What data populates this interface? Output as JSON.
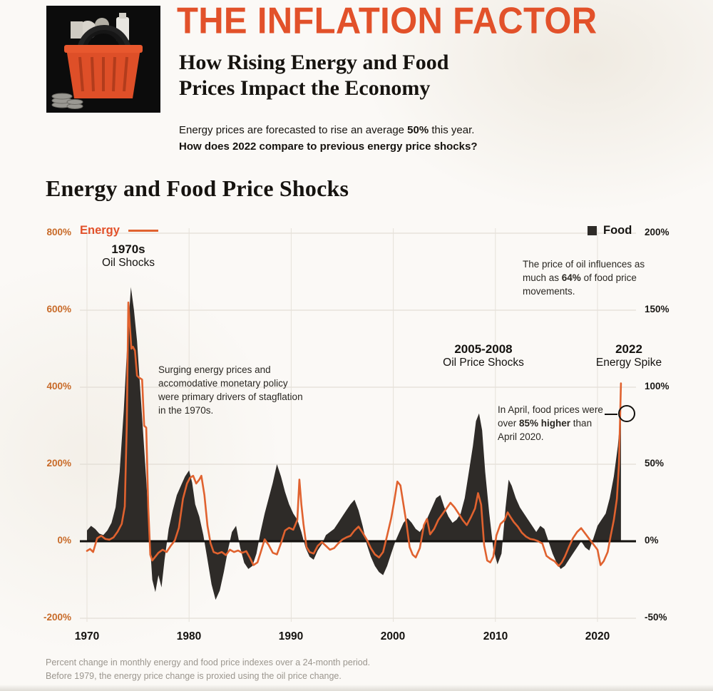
{
  "page": {
    "accent": "#e2512a",
    "background": "#fbf9f6",
    "food_color": "#2e2b28",
    "energy_color": "#e0622f"
  },
  "header": {
    "title": "THE INFLATION FACTOR",
    "subtitle_line1": "How Rising Energy and Food",
    "subtitle_line2": "Prices Impact the Economy",
    "intro_pre": "Energy prices are forecasted to rise an average ",
    "intro_bold": "50%",
    "intro_post": " this year.",
    "intro_question": "How does 2022 compare to previous energy price shocks?"
  },
  "section": {
    "title": "Energy and Food Price Shocks"
  },
  "legend": {
    "energy": "Energy",
    "food": "Food"
  },
  "axes": {
    "left_ticks": [
      "800%",
      "600%",
      "400%",
      "200%",
      "0%",
      "-200%"
    ],
    "right_ticks": [
      "200%",
      "150%",
      "100%",
      "50%",
      "0%",
      "-50%"
    ],
    "x_ticks": [
      "1970",
      "1980",
      "1990",
      "2000",
      "2010",
      "2020"
    ]
  },
  "annotations": {
    "a1970_title": "1970s",
    "a1970_sub": "Oil Shocks",
    "stagflation": "Surging energy prices and accomodative monetary policy were primary drivers of stagflation in the 1970s.",
    "a2005_title": "2005-2008",
    "a2005_sub": "Oil Price Shocks",
    "a2022_title": "2022",
    "a2022_sub": "Energy Spike",
    "oil_pre": "The price of oil influences as much as ",
    "oil_bold": "64%",
    "oil_post": " of food price movements.",
    "april_pre": "In April, food prices were over ",
    "april_bold": "85% higher",
    "april_post": " than April 2020."
  },
  "footnote": {
    "line1": "Percent change in monthly energy and food price indexes over a 24-month period.",
    "line2": "Before 1979, the energy price change is proxied using the oil price change."
  },
  "chart_data": {
    "type": "line+area",
    "title": "Energy and Food Price Shocks",
    "x_range": [
      1969.5,
      2023.2
    ],
    "x_gridlines": [
      1970,
      1980,
      1990,
      2000,
      2010,
      2020
    ],
    "grid": true,
    "legend_position": "top",
    "left_axis": {
      "label": "Energy (% change, 24-month)",
      "range": [
        -200,
        800
      ],
      "ticks": [
        800,
        600,
        400,
        200,
        0,
        -200
      ],
      "color": "#e0622f"
    },
    "right_axis": {
      "label": "Food (% change, 24-month)",
      "range": [
        -50,
        200
      ],
      "ticks": [
        200,
        150,
        100,
        50,
        0,
        -50
      ],
      "color": "#2e2b28"
    },
    "series": [
      {
        "name": "Energy",
        "axis": "left",
        "type": "line",
        "color": "#e0622f",
        "x": [
          1970.0,
          1970.3,
          1970.6,
          1971.0,
          1971.4,
          1971.8,
          1972.2,
          1972.6,
          1973.0,
          1973.4,
          1973.7,
          1973.9,
          1974.05,
          1974.2,
          1974.35,
          1974.5,
          1974.7,
          1974.9,
          1975.1,
          1975.4,
          1975.6,
          1975.8,
          1976.0,
          1976.2,
          1976.4,
          1976.7,
          1977.0,
          1977.4,
          1977.8,
          1978.2,
          1978.6,
          1979.0,
          1979.4,
          1979.8,
          1980.1,
          1980.4,
          1980.7,
          1981.0,
          1981.2,
          1981.5,
          1981.8,
          1982.1,
          1982.4,
          1982.8,
          1983.2,
          1983.6,
          1984.0,
          1984.4,
          1984.8,
          1985.2,
          1985.6,
          1986.0,
          1986.3,
          1986.7,
          1987.0,
          1987.4,
          1987.8,
          1988.2,
          1988.6,
          1989.0,
          1989.4,
          1989.8,
          1990.2,
          1990.6,
          1990.8,
          1991.0,
          1991.2,
          1991.5,
          1991.8,
          1992.2,
          1992.6,
          1993.0,
          1993.4,
          1993.8,
          1994.2,
          1994.6,
          1995.0,
          1995.4,
          1995.8,
          1996.2,
          1996.6,
          1997.0,
          1997.4,
          1997.8,
          1998.2,
          1998.6,
          1999.0,
          1999.4,
          1999.8,
          2000.1,
          2000.4,
          2000.7,
          2001.0,
          2001.3,
          2001.6,
          2001.9,
          2002.2,
          2002.6,
          2003.0,
          2003.3,
          2003.6,
          2004.0,
          2004.4,
          2004.8,
          2005.2,
          2005.6,
          2006.0,
          2006.4,
          2006.8,
          2007.2,
          2007.6,
          2008.0,
          2008.3,
          2008.6,
          2008.9,
          2009.2,
          2009.5,
          2009.8,
          2010.1,
          2010.5,
          2010.9,
          2011.2,
          2011.5,
          2011.8,
          2012.2,
          2012.6,
          2013.0,
          2013.4,
          2013.8,
          2014.2,
          2014.6,
          2015.0,
          2015.4,
          2015.8,
          2016.2,
          2016.5,
          2016.8,
          2017.2,
          2017.6,
          2018.0,
          2018.4,
          2018.8,
          2019.2,
          2019.6,
          2020.0,
          2020.3,
          2020.6,
          2021.0,
          2021.3,
          2021.6,
          2021.9,
          2022.1,
          2022.3
        ],
        "values": [
          -25,
          -20,
          -28,
          8,
          14,
          6,
          4,
          10,
          25,
          45,
          90,
          300,
          620,
          560,
          500,
          505,
          495,
          430,
          425,
          420,
          300,
          295,
          90,
          -35,
          -50,
          -40,
          -30,
          -22,
          -28,
          -12,
          2,
          35,
          110,
          150,
          165,
          170,
          150,
          160,
          170,
          120,
          40,
          -5,
          -28,
          -32,
          -28,
          -36,
          -22,
          -28,
          -24,
          -30,
          -26,
          -45,
          -62,
          -55,
          -30,
          5,
          -10,
          -30,
          -34,
          -5,
          28,
          35,
          30,
          55,
          160,
          95,
          45,
          -15,
          -28,
          -32,
          -12,
          -2,
          -12,
          -22,
          -18,
          -6,
          4,
          10,
          14,
          28,
          38,
          22,
          4,
          -18,
          -34,
          -42,
          -28,
          15,
          60,
          105,
          155,
          145,
          95,
          45,
          -15,
          -35,
          -42,
          -18,
          42,
          58,
          18,
          32,
          55,
          70,
          85,
          100,
          88,
          72,
          55,
          42,
          62,
          85,
          125,
          95,
          -10,
          -50,
          -55,
          -40,
          15,
          45,
          55,
          75,
          62,
          50,
          38,
          22,
          12,
          6,
          4,
          0,
          -6,
          -38,
          -46,
          -52,
          -64,
          -55,
          -40,
          -15,
          8,
          24,
          34,
          20,
          6,
          -8,
          -22,
          -62,
          -52,
          -28,
          15,
          55,
          110,
          200,
          410
        ]
      },
      {
        "name": "Food",
        "axis": "right",
        "type": "area",
        "color": "#2e2b28",
        "x": [
          1970.0,
          1970.4,
          1970.8,
          1971.2,
          1971.6,
          1972.0,
          1972.4,
          1972.8,
          1973.2,
          1973.6,
          1974.0,
          1974.3,
          1974.6,
          1974.9,
          1975.2,
          1975.5,
          1975.8,
          1976.1,
          1976.4,
          1976.7,
          1977.0,
          1977.3,
          1977.6,
          1978.0,
          1978.4,
          1978.8,
          1979.2,
          1979.6,
          1980.0,
          1980.3,
          1980.6,
          1981.0,
          1981.4,
          1981.8,
          1982.2,
          1982.6,
          1983.0,
          1983.4,
          1983.8,
          1984.2,
          1984.6,
          1985.0,
          1985.4,
          1985.8,
          1986.2,
          1986.6,
          1987.0,
          1987.4,
          1987.8,
          1988.2,
          1988.6,
          1989.0,
          1989.4,
          1989.8,
          1990.2,
          1990.6,
          1991.0,
          1991.4,
          1991.8,
          1992.2,
          1992.6,
          1993.0,
          1993.4,
          1993.8,
          1994.2,
          1994.6,
          1995.0,
          1995.4,
          1995.8,
          1996.2,
          1996.6,
          1997.0,
          1997.4,
          1997.8,
          1998.2,
          1998.6,
          1999.0,
          1999.4,
          1999.8,
          2000.2,
          2000.6,
          2001.0,
          2001.4,
          2001.8,
          2002.2,
          2002.6,
          2003.0,
          2003.4,
          2003.8,
          2004.2,
          2004.6,
          2005.0,
          2005.4,
          2005.8,
          2006.2,
          2006.6,
          2007.0,
          2007.4,
          2007.8,
          2008.1,
          2008.4,
          2008.7,
          2009.0,
          2009.4,
          2009.8,
          2010.2,
          2010.6,
          2011.0,
          2011.3,
          2011.6,
          2012.0,
          2012.4,
          2012.8,
          2013.2,
          2013.6,
          2014.0,
          2014.4,
          2014.8,
          2015.2,
          2015.6,
          2016.0,
          2016.4,
          2016.8,
          2017.2,
          2017.6,
          2018.0,
          2018.4,
          2018.8,
          2019.2,
          2019.6,
          2020.0,
          2020.4,
          2020.8,
          2021.2,
          2021.6,
          2022.0,
          2022.3
        ],
        "values": [
          7,
          10,
          8,
          5,
          4,
          7,
          12,
          22,
          45,
          85,
          135,
          165,
          150,
          130,
          100,
          70,
          40,
          5,
          -25,
          -33,
          -22,
          -30,
          -12,
          8,
          20,
          30,
          36,
          42,
          46,
          38,
          24,
          16,
          4,
          -12,
          -28,
          -38,
          -32,
          -20,
          -6,
          6,
          10,
          -4,
          -14,
          -18,
          -16,
          -8,
          6,
          18,
          28,
          38,
          50,
          42,
          32,
          24,
          18,
          14,
          6,
          -4,
          -10,
          -12,
          -6,
          -2,
          4,
          6,
          8,
          12,
          16,
          20,
          24,
          27,
          20,
          10,
          -2,
          -10,
          -16,
          -20,
          -22,
          -16,
          -8,
          0,
          6,
          12,
          15,
          12,
          8,
          6,
          10,
          16,
          22,
          28,
          30,
          22,
          16,
          12,
          14,
          18,
          28,
          45,
          62,
          78,
          83,
          72,
          45,
          18,
          -5,
          -15,
          -8,
          22,
          40,
          36,
          28,
          22,
          18,
          14,
          10,
          6,
          10,
          8,
          0,
          -8,
          -14,
          -18,
          -16,
          -12,
          -8,
          -4,
          0,
          -4,
          -6,
          2,
          10,
          14,
          18,
          28,
          42,
          62,
          85
        ]
      }
    ]
  }
}
